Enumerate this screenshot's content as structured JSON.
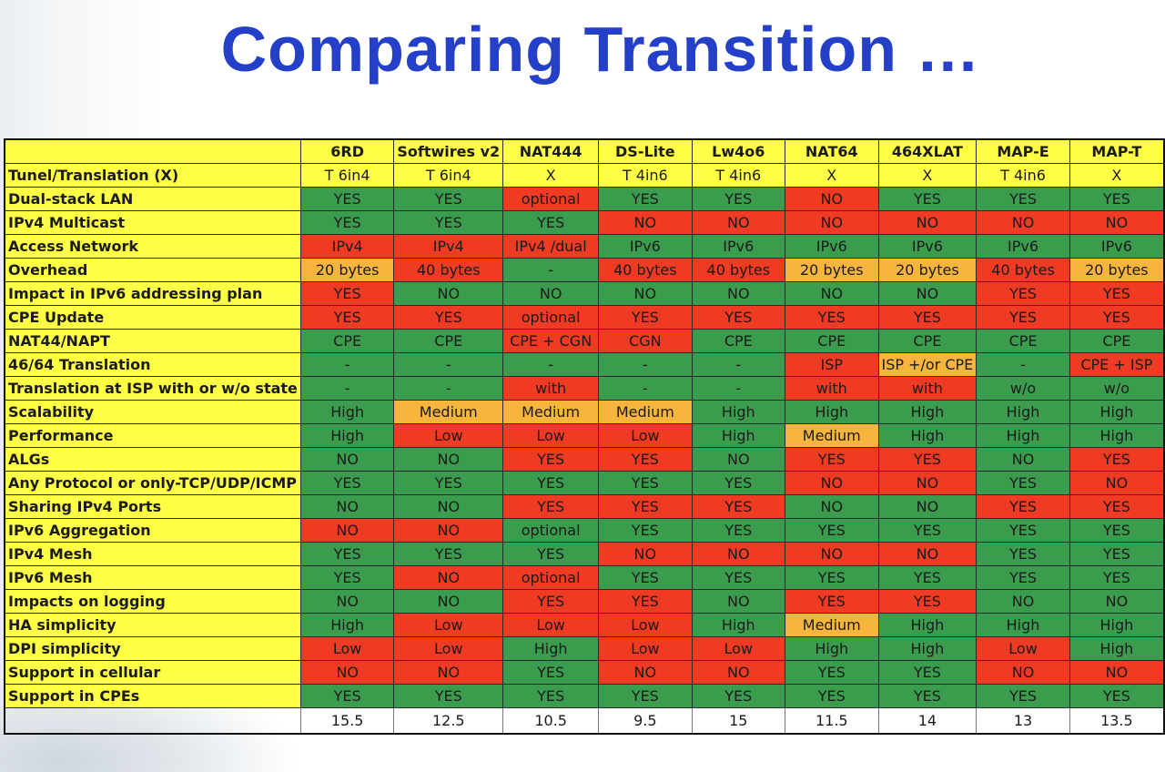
{
  "title": "Comparing Transition …",
  "colors": {
    "green": "#3c9c4e",
    "red": "#ef3a24",
    "orange": "#f7b53e",
    "yellow": "#ffff46",
    "title": "#2440c8"
  },
  "columns": [
    "6RD",
    "Softwires v2",
    "NAT444",
    "DS-Lite",
    "Lw4o6",
    "NAT64",
    "464XLAT",
    "MAP-E",
    "MAP-T"
  ],
  "rows": [
    {
      "label": "Tunel/Translation (X)",
      "cells": [
        {
          "t": "T 6in4",
          "c": "y"
        },
        {
          "t": "T 6in4",
          "c": "y"
        },
        {
          "t": "X",
          "c": "y"
        },
        {
          "t": "T 4in6",
          "c": "y"
        },
        {
          "t": "T 4in6",
          "c": "y"
        },
        {
          "t": "X",
          "c": "y"
        },
        {
          "t": "X",
          "c": "y"
        },
        {
          "t": "T 4in6",
          "c": "y"
        },
        {
          "t": "X",
          "c": "y"
        }
      ]
    },
    {
      "label": "Dual-stack LAN",
      "cells": [
        {
          "t": "YES",
          "c": "g"
        },
        {
          "t": "YES",
          "c": "g"
        },
        {
          "t": "optional",
          "c": "r"
        },
        {
          "t": "YES",
          "c": "g"
        },
        {
          "t": "YES",
          "c": "g"
        },
        {
          "t": "NO",
          "c": "r"
        },
        {
          "t": "YES",
          "c": "g"
        },
        {
          "t": "YES",
          "c": "g"
        },
        {
          "t": "YES",
          "c": "g"
        }
      ]
    },
    {
      "label": "IPv4 Multicast",
      "cells": [
        {
          "t": "YES",
          "c": "g"
        },
        {
          "t": "YES",
          "c": "g"
        },
        {
          "t": "YES",
          "c": "g"
        },
        {
          "t": "NO",
          "c": "r"
        },
        {
          "t": "NO",
          "c": "r"
        },
        {
          "t": "NO",
          "c": "r"
        },
        {
          "t": "NO",
          "c": "r"
        },
        {
          "t": "NO",
          "c": "r"
        },
        {
          "t": "NO",
          "c": "r"
        }
      ]
    },
    {
      "label": "Access Network",
      "cells": [
        {
          "t": "IPv4",
          "c": "r"
        },
        {
          "t": "IPv4",
          "c": "r"
        },
        {
          "t": "IPv4 /dual",
          "c": "r"
        },
        {
          "t": "IPv6",
          "c": "g"
        },
        {
          "t": "IPv6",
          "c": "g"
        },
        {
          "t": "IPv6",
          "c": "g"
        },
        {
          "t": "IPv6",
          "c": "g"
        },
        {
          "t": "IPv6",
          "c": "g"
        },
        {
          "t": "IPv6",
          "c": "g"
        }
      ]
    },
    {
      "label": "Overhead",
      "cells": [
        {
          "t": "20 bytes",
          "c": "o"
        },
        {
          "t": "40 bytes",
          "c": "r"
        },
        {
          "t": "-",
          "c": "g"
        },
        {
          "t": "40 bytes",
          "c": "r"
        },
        {
          "t": "40 bytes",
          "c": "r"
        },
        {
          "t": "20 bytes",
          "c": "o"
        },
        {
          "t": "20 bytes",
          "c": "o"
        },
        {
          "t": "40 bytes",
          "c": "r"
        },
        {
          "t": "20 bytes",
          "c": "o"
        }
      ]
    },
    {
      "label": "Impact in IPv6 addressing plan",
      "cells": [
        {
          "t": "YES",
          "c": "r"
        },
        {
          "t": "NO",
          "c": "g"
        },
        {
          "t": "NO",
          "c": "g"
        },
        {
          "t": "NO",
          "c": "g"
        },
        {
          "t": "NO",
          "c": "g"
        },
        {
          "t": "NO",
          "c": "g"
        },
        {
          "t": "NO",
          "c": "g"
        },
        {
          "t": "YES",
          "c": "r"
        },
        {
          "t": "YES",
          "c": "r"
        }
      ]
    },
    {
      "label": "CPE Update",
      "cells": [
        {
          "t": "YES",
          "c": "r"
        },
        {
          "t": "YES",
          "c": "r"
        },
        {
          "t": "optional",
          "c": "r"
        },
        {
          "t": "YES",
          "c": "r"
        },
        {
          "t": "YES",
          "c": "r"
        },
        {
          "t": "YES",
          "c": "r"
        },
        {
          "t": "YES",
          "c": "r"
        },
        {
          "t": "YES",
          "c": "r"
        },
        {
          "t": "YES",
          "c": "r"
        }
      ]
    },
    {
      "label": "NAT44/NAPT",
      "cells": [
        {
          "t": "CPE",
          "c": "g"
        },
        {
          "t": "CPE",
          "c": "g"
        },
        {
          "t": "CPE + CGN",
          "c": "r"
        },
        {
          "t": "CGN",
          "c": "r"
        },
        {
          "t": "CPE",
          "c": "g"
        },
        {
          "t": "CPE",
          "c": "g"
        },
        {
          "t": "CPE",
          "c": "g"
        },
        {
          "t": "CPE",
          "c": "g"
        },
        {
          "t": "CPE",
          "c": "g"
        }
      ]
    },
    {
      "label": "46/64 Translation",
      "cells": [
        {
          "t": "-",
          "c": "g"
        },
        {
          "t": "-",
          "c": "g"
        },
        {
          "t": "-",
          "c": "g"
        },
        {
          "t": "-",
          "c": "g"
        },
        {
          "t": "-",
          "c": "g"
        },
        {
          "t": "ISP",
          "c": "r"
        },
        {
          "t": "ISP +/or CPE",
          "c": "o"
        },
        {
          "t": "-",
          "c": "g"
        },
        {
          "t": "CPE + ISP",
          "c": "r"
        }
      ]
    },
    {
      "label": "Translation at ISP with or w/o state",
      "cells": [
        {
          "t": "-",
          "c": "g"
        },
        {
          "t": "-",
          "c": "g"
        },
        {
          "t": "with",
          "c": "r"
        },
        {
          "t": "-",
          "c": "g"
        },
        {
          "t": "-",
          "c": "g"
        },
        {
          "t": "with",
          "c": "r"
        },
        {
          "t": "with",
          "c": "r"
        },
        {
          "t": "w/o",
          "c": "g"
        },
        {
          "t": "w/o",
          "c": "g"
        }
      ]
    },
    {
      "label": "Scalability",
      "cells": [
        {
          "t": "High",
          "c": "g"
        },
        {
          "t": "Medium",
          "c": "o"
        },
        {
          "t": "Medium",
          "c": "o"
        },
        {
          "t": "Medium",
          "c": "o"
        },
        {
          "t": "High",
          "c": "g"
        },
        {
          "t": "High",
          "c": "g"
        },
        {
          "t": "High",
          "c": "g"
        },
        {
          "t": "High",
          "c": "g"
        },
        {
          "t": "High",
          "c": "g"
        }
      ]
    },
    {
      "label": "Performance",
      "cells": [
        {
          "t": "High",
          "c": "g"
        },
        {
          "t": "Low",
          "c": "r"
        },
        {
          "t": "Low",
          "c": "r"
        },
        {
          "t": "Low",
          "c": "r"
        },
        {
          "t": "High",
          "c": "g"
        },
        {
          "t": "Medium",
          "c": "o"
        },
        {
          "t": "High",
          "c": "g"
        },
        {
          "t": "High",
          "c": "g"
        },
        {
          "t": "High",
          "c": "g"
        }
      ]
    },
    {
      "label": "ALGs",
      "cells": [
        {
          "t": "NO",
          "c": "g"
        },
        {
          "t": "NO",
          "c": "g"
        },
        {
          "t": "YES",
          "c": "r"
        },
        {
          "t": "YES",
          "c": "r"
        },
        {
          "t": "NO",
          "c": "g"
        },
        {
          "t": "YES",
          "c": "r"
        },
        {
          "t": "YES",
          "c": "r"
        },
        {
          "t": "NO",
          "c": "g"
        },
        {
          "t": "YES",
          "c": "r"
        }
      ]
    },
    {
      "label": "Any Protocol or only-TCP/UDP/ICMP",
      "cells": [
        {
          "t": "YES",
          "c": "g"
        },
        {
          "t": "YES",
          "c": "g"
        },
        {
          "t": "YES",
          "c": "g"
        },
        {
          "t": "YES",
          "c": "g"
        },
        {
          "t": "YES",
          "c": "g"
        },
        {
          "t": "NO",
          "c": "r"
        },
        {
          "t": "NO",
          "c": "r"
        },
        {
          "t": "YES",
          "c": "g"
        },
        {
          "t": "NO",
          "c": "r"
        }
      ]
    },
    {
      "label": "Sharing IPv4 Ports",
      "cells": [
        {
          "t": "NO",
          "c": "g"
        },
        {
          "t": "NO",
          "c": "g"
        },
        {
          "t": "YES",
          "c": "r"
        },
        {
          "t": "YES",
          "c": "r"
        },
        {
          "t": "YES",
          "c": "r"
        },
        {
          "t": "NO",
          "c": "g"
        },
        {
          "t": "NO",
          "c": "g"
        },
        {
          "t": "YES",
          "c": "r"
        },
        {
          "t": "YES",
          "c": "r"
        }
      ]
    },
    {
      "label": "IPv6 Aggregation",
      "cells": [
        {
          "t": "NO",
          "c": "r"
        },
        {
          "t": "NO",
          "c": "r"
        },
        {
          "t": "optional",
          "c": "g"
        },
        {
          "t": "YES",
          "c": "g"
        },
        {
          "t": "YES",
          "c": "g"
        },
        {
          "t": "YES",
          "c": "g"
        },
        {
          "t": "YES",
          "c": "g"
        },
        {
          "t": "YES",
          "c": "g"
        },
        {
          "t": "YES",
          "c": "g"
        }
      ]
    },
    {
      "label": "IPv4 Mesh",
      "cells": [
        {
          "t": "YES",
          "c": "g"
        },
        {
          "t": "YES",
          "c": "g"
        },
        {
          "t": "YES",
          "c": "g"
        },
        {
          "t": "NO",
          "c": "r"
        },
        {
          "t": "NO",
          "c": "r"
        },
        {
          "t": "NO",
          "c": "r"
        },
        {
          "t": "NO",
          "c": "r"
        },
        {
          "t": "YES",
          "c": "g"
        },
        {
          "t": "YES",
          "c": "g"
        }
      ]
    },
    {
      "label": "IPv6 Mesh",
      "cells": [
        {
          "t": "YES",
          "c": "g"
        },
        {
          "t": "NO",
          "c": "r"
        },
        {
          "t": "optional",
          "c": "r"
        },
        {
          "t": "YES",
          "c": "g"
        },
        {
          "t": "YES",
          "c": "g"
        },
        {
          "t": "YES",
          "c": "g"
        },
        {
          "t": "YES",
          "c": "g"
        },
        {
          "t": "YES",
          "c": "g"
        },
        {
          "t": "YES",
          "c": "g"
        }
      ]
    },
    {
      "label": "Impacts on logging",
      "cells": [
        {
          "t": "NO",
          "c": "g"
        },
        {
          "t": "NO",
          "c": "g"
        },
        {
          "t": "YES",
          "c": "r"
        },
        {
          "t": "YES",
          "c": "r"
        },
        {
          "t": "NO",
          "c": "g"
        },
        {
          "t": "YES",
          "c": "r"
        },
        {
          "t": "YES",
          "c": "r"
        },
        {
          "t": "NO",
          "c": "g"
        },
        {
          "t": "NO",
          "c": "g"
        }
      ]
    },
    {
      "label": "HA simplicity",
      "cells": [
        {
          "t": "High",
          "c": "g"
        },
        {
          "t": "Low",
          "c": "r"
        },
        {
          "t": "Low",
          "c": "r"
        },
        {
          "t": "Low",
          "c": "r"
        },
        {
          "t": "High",
          "c": "g"
        },
        {
          "t": "Medium",
          "c": "o"
        },
        {
          "t": "High",
          "c": "g"
        },
        {
          "t": "High",
          "c": "g"
        },
        {
          "t": "High",
          "c": "g"
        }
      ]
    },
    {
      "label": "DPI simplicity",
      "cells": [
        {
          "t": "Low",
          "c": "r"
        },
        {
          "t": "Low",
          "c": "r"
        },
        {
          "t": "High",
          "c": "g"
        },
        {
          "t": "Low",
          "c": "r"
        },
        {
          "t": "Low",
          "c": "r"
        },
        {
          "t": "High",
          "c": "g"
        },
        {
          "t": "High",
          "c": "g"
        },
        {
          "t": "Low",
          "c": "r"
        },
        {
          "t": "High",
          "c": "g"
        }
      ]
    },
    {
      "label": "Support in cellular",
      "cells": [
        {
          "t": "NO",
          "c": "r"
        },
        {
          "t": "NO",
          "c": "r"
        },
        {
          "t": "YES",
          "c": "g"
        },
        {
          "t": "NO",
          "c": "r"
        },
        {
          "t": "NO",
          "c": "r"
        },
        {
          "t": "YES",
          "c": "g"
        },
        {
          "t": "YES",
          "c": "g"
        },
        {
          "t": "NO",
          "c": "r"
        },
        {
          "t": "NO",
          "c": "r"
        }
      ]
    },
    {
      "label": "Support in CPEs",
      "cells": [
        {
          "t": "YES",
          "c": "g"
        },
        {
          "t": "YES",
          "c": "g"
        },
        {
          "t": "YES",
          "c": "g"
        },
        {
          "t": "YES",
          "c": "g"
        },
        {
          "t": "YES",
          "c": "g"
        },
        {
          "t": "YES",
          "c": "g"
        },
        {
          "t": "YES",
          "c": "g"
        },
        {
          "t": "YES",
          "c": "g"
        },
        {
          "t": "YES",
          "c": "g"
        }
      ]
    }
  ],
  "totals": [
    "15.5",
    "12.5",
    "10.5",
    "9.5",
    "15",
    "11.5",
    "14",
    "13",
    "13.5"
  ]
}
